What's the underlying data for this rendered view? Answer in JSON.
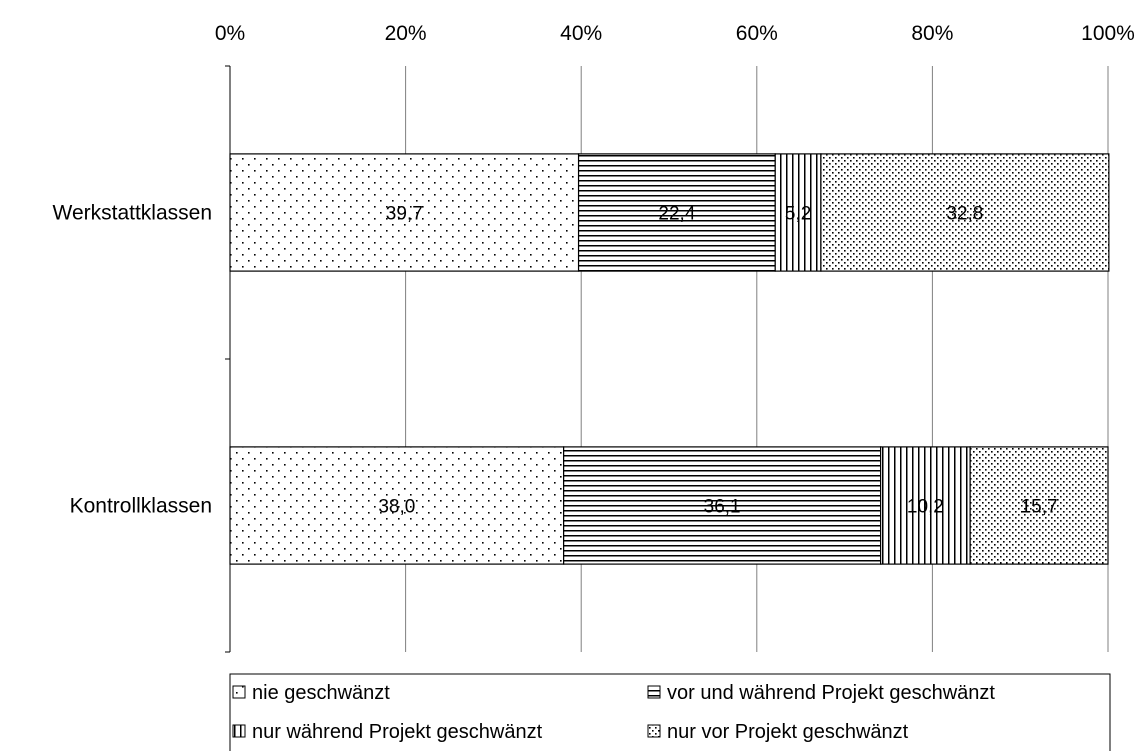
{
  "chart_data": {
    "type": "bar",
    "orientation": "horizontal",
    "stacked": "percent",
    "categories": [
      "Werkstattklassen",
      "Kontrollklassen"
    ],
    "series": [
      {
        "name": "nie geschwänzt",
        "values": [
          39.7,
          38.0
        ],
        "labels": [
          "39,7",
          "38,0"
        ],
        "pattern": "sparse-dots"
      },
      {
        "name": "vor und während Projekt geschwänzt",
        "values": [
          22.4,
          36.1
        ],
        "labels": [
          "22,4",
          "36,1"
        ],
        "pattern": "horizontal-lines"
      },
      {
        "name": "nur während Projekt geschwänzt",
        "values": [
          5.2,
          10.2
        ],
        "labels": [
          "5,2",
          "10,2"
        ],
        "pattern": "vertical-lines"
      },
      {
        "name": "nur vor Projekt geschwänzt",
        "values": [
          32.8,
          15.7
        ],
        "labels": [
          "32,8",
          "15,7"
        ],
        "pattern": "dense-dots"
      }
    ],
    "x_ticks": [
      "0%",
      "20%",
      "40%",
      "60%",
      "80%",
      "100%"
    ],
    "xlim": [
      0,
      100
    ],
    "title": "",
    "xlabel": "",
    "ylabel": "",
    "grid": "vertical",
    "legend_position": "bottom"
  }
}
